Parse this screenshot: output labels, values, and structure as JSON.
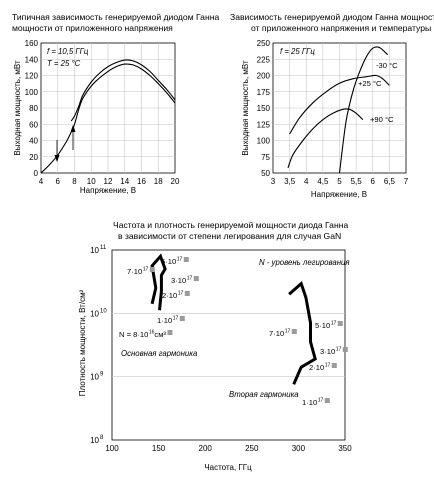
{
  "chart_data": [
    {
      "type": "line",
      "title_line1": "Типичная зависимость генерируемой диодом Ганна",
      "title_line2": "мощности от приложенного напряжения",
      "xlabel": "Напряжение, В",
      "ylabel": "Выходная мощность, мВт",
      "xlim": [
        4,
        20
      ],
      "ylim": [
        0,
        160
      ],
      "x_ticks": [
        "4",
        "6",
        "8",
        "10",
        "12",
        "14",
        "16",
        "18",
        "20"
      ],
      "y_ticks": [
        "0",
        "20",
        "40",
        "60",
        "80",
        "100",
        "120",
        "140",
        "160"
      ],
      "annotations": {
        "freq": "f = 10,5 ГГц",
        "temp": "T = 25 °C"
      },
      "series": [
        {
          "x": [
            4,
            5,
            6,
            7,
            7.5,
            8,
            8.5,
            9,
            10,
            11,
            12,
            13,
            14,
            15,
            16,
            17,
            18,
            19,
            20
          ],
          "y": [
            0,
            10,
            22,
            38,
            48,
            60,
            78,
            92,
            107,
            117,
            125,
            131,
            134,
            133,
            128,
            120,
            110,
            99,
            86
          ]
        },
        {
          "x": [
            7.6,
            8,
            8.5,
            9,
            10,
            11,
            12,
            13,
            14,
            15,
            16,
            17,
            18,
            19,
            20
          ],
          "y": [
            64,
            70,
            82,
            96,
            112,
            123,
            131,
            136,
            139,
            138,
            133,
            125,
            114,
            103,
            90
          ]
        }
      ]
    },
    {
      "type": "line",
      "title_line1": "Зависимость генерируемой диодом Ганна мощности",
      "title_line2": "от приложенного напряжения и температуры",
      "xlabel": "Напряжение, В",
      "ylabel": "Выходная мощность, мВт",
      "xlim": [
        3,
        7
      ],
      "ylim": [
        50,
        250
      ],
      "x_ticks": [
        "3",
        "3,5",
        "4",
        "4,5",
        "5",
        "5,5",
        "6",
        "6,5",
        "7"
      ],
      "y_ticks": [
        "50",
        "75",
        "100",
        "125",
        "150",
        "175",
        "200",
        "225",
        "250"
      ],
      "annotations": {
        "freq": "f = 25 ГГц"
      },
      "series": [
        {
          "name": "-30 °C",
          "x": [
            5.0,
            5.2,
            5.4,
            5.6,
            5.8,
            6.0,
            6.2,
            6.45
          ],
          "y": [
            50,
            130,
            175,
            205,
            228,
            242,
            243,
            232
          ]
        },
        {
          "name": "+25 °C",
          "x": [
            3.5,
            3.8,
            4.2,
            4.6,
            5.0,
            5.4,
            5.8,
            6.1,
            6.3,
            6.5
          ],
          "y": [
            110,
            135,
            158,
            175,
            188,
            195,
            198,
            200,
            195,
            185
          ]
        },
        {
          "name": "+90 °C",
          "x": [
            3.45,
            3.6,
            3.9,
            4.2,
            4.5,
            4.8,
            5.1,
            5.3,
            5.5,
            5.7
          ],
          "y": [
            58,
            78,
            100,
            118,
            132,
            142,
            148,
            148,
            142,
            132
          ]
        }
      ]
    },
    {
      "type": "line",
      "title_line1": "Частота и плотность генерируемой мощности диода Ганна",
      "title_line2": "в зависимости от степени легирования для случая GaN",
      "xlabel": "Частота, ГГц",
      "ylabel": "Плотность мощности, Вт/см²",
      "xlim": [
        100,
        350
      ],
      "ylim_log10": [
        11,
        8
      ],
      "x_ticks": [
        "100",
        "150",
        "200",
        "250",
        "300",
        "350"
      ],
      "y_ticks": [
        "10",
        "10",
        "10",
        "10"
      ],
      "y_tick_exponents": [
        "11",
        "10",
        "9",
        "8"
      ],
      "legend_note": "N - уровень легирования",
      "series": [
        {
          "name": "Основная гармоника",
          "x": [
            143,
            147,
            143,
            152,
            157,
            153,
            153,
            151
          ],
          "y_log10": [
            10.15,
            10.4,
            10.75,
            10.9,
            10.7,
            10.6,
            10.35,
            10.05
          ],
          "point_labels": [
            {
              "text": "N = 8·10",
              "exp": "16",
              "unit": " см³"
            },
            {
              "text": "1·10",
              "exp": "17"
            },
            {
              "text": "2·10",
              "exp": "17"
            },
            {
              "text": "3·10",
              "exp": "17"
            },
            {
              "text": "5·10",
              "exp": "17"
            },
            {
              "text": "7·10",
              "exp": "17"
            }
          ]
        },
        {
          "name": "Вторая гармоника",
          "x": [
            290,
            303,
            308,
            313,
            313,
            318,
            303,
            295
          ],
          "y_log10": [
            10.3,
            10.47,
            10.25,
            9.85,
            9.55,
            9.28,
            9.15,
            8.88
          ],
          "point_labels": [
            {
              "text": "5·10",
              "exp": "17"
            },
            {
              "text": "7·10",
              "exp": "17"
            },
            {
              "text": "3·10",
              "exp": "17"
            },
            {
              "text": "2·10",
              "exp": "17"
            },
            {
              "text": "1·10",
              "exp": "17"
            }
          ]
        }
      ]
    }
  ]
}
